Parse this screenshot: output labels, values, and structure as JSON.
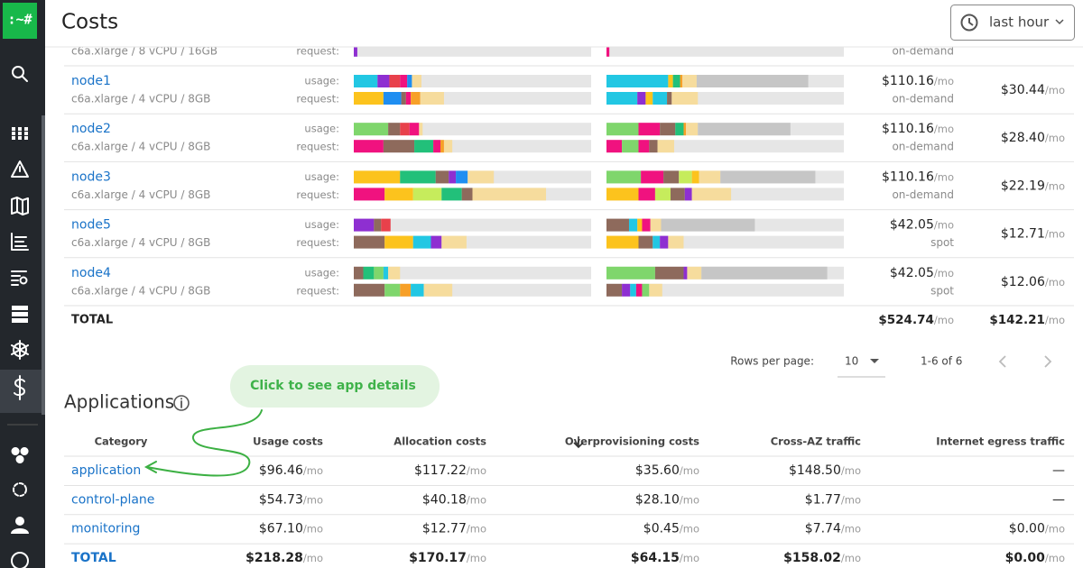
{
  "sidebar": {
    "logo": ":~#"
  },
  "header": {
    "title": "Costs",
    "time_range": "last hour"
  },
  "nodes": {
    "partial_row": {
      "instance": "c6a.xlarge / 8 vCPU / 16GB",
      "request_label": "request:",
      "pricing": "on-demand",
      "cpu_request": [
        [
          "#8e2fd1",
          1.5
        ]
      ],
      "memory_request": [
        [
          "#f0127f",
          1.2
        ]
      ]
    },
    "rows": [
      {
        "name": "node1",
        "instance": "c6a.xlarge / 4 vCPU / 8GB",
        "usage_label": "usage:",
        "request_label": "request:",
        "cpu_usage": [
          [
            "#22c7e3",
            10
          ],
          [
            "#8e2fd1",
            5
          ],
          [
            "#e8414b",
            4.5
          ],
          [
            "#f0127f",
            3
          ],
          [
            "#1f8ef1",
            2
          ],
          [
            "#f6dc9d",
            4
          ]
        ],
        "cpu_request": [
          [
            "#fcc31d",
            12.5
          ],
          [
            "#1f8ef1",
            7.5
          ],
          [
            "#8e6a5c",
            2
          ],
          [
            "#f0127f",
            2
          ],
          [
            "#f7a028",
            4
          ],
          [
            "#f6dc9d",
            10
          ]
        ],
        "memory_usage": [
          [
            "#22c7e3",
            26
          ],
          [
            "#fcc31d",
            2
          ],
          [
            "#22c07a",
            3
          ],
          [
            "#f7a028",
            1
          ],
          [
            "#f6dc9d",
            6
          ],
          [
            "#c6c6c6",
            47
          ]
        ],
        "memory_request": [
          [
            "#22c7e3",
            13
          ],
          [
            "#8e2fd1",
            3.5
          ],
          [
            "#fcc31d",
            3
          ],
          [
            "#22c7e3",
            6
          ],
          [
            "#8e6a5c",
            2
          ],
          [
            "#f6dc9d",
            11
          ]
        ],
        "cost": [
          "$110.16",
          "/mo"
        ],
        "pricing": "on-demand",
        "waste": [
          "$30.44",
          "/mo"
        ]
      },
      {
        "name": "node2",
        "instance": "c6a.xlarge / 4 vCPU / 8GB",
        "usage_label": "usage:",
        "request_label": "request:",
        "cpu_usage": [
          [
            "#7fd66c",
            14.5
          ],
          [
            "#8e6a5c",
            5
          ],
          [
            "#e8414b",
            4
          ],
          [
            "#f0127f",
            4
          ],
          [
            "#f6dc9d",
            1.5
          ]
        ],
        "cpu_request": [
          [
            "#f0127f",
            12.5
          ],
          [
            "#8e6a5c",
            13
          ],
          [
            "#22c07a",
            8
          ],
          [
            "#f0127f",
            3
          ],
          [
            "#f7a028",
            1.5
          ],
          [
            "#f6dc9d",
            3.5
          ]
        ],
        "memory_usage": [
          [
            "#7fd66c",
            13.5
          ],
          [
            "#f0127f",
            9
          ],
          [
            "#8e6a5c",
            6.5
          ],
          [
            "#22c07a",
            3.5
          ],
          [
            "#f7a028",
            1
          ],
          [
            "#f6dc9d",
            5
          ],
          [
            "#c6c6c6",
            39
          ]
        ],
        "memory_request": [
          [
            "#f0127f",
            6.5
          ],
          [
            "#7fd66c",
            7
          ],
          [
            "#f0127f",
            4.5
          ],
          [
            "#8e6a5c",
            3.5
          ],
          [
            "#f6dc9d",
            7
          ]
        ],
        "cost": [
          "$110.16",
          "/mo"
        ],
        "pricing": "on-demand",
        "waste": [
          "$28.40",
          "/mo"
        ]
      },
      {
        "name": "node3",
        "instance": "c6a.xlarge / 4 vCPU / 8GB",
        "usage_label": "usage:",
        "request_label": "request:",
        "cpu_usage": [
          [
            "#fcc31d",
            19.5
          ],
          [
            "#22c07a",
            15
          ],
          [
            "#8e6a5c",
            5.5
          ],
          [
            "#8e2fd1",
            3
          ],
          [
            "#1f8ef1",
            5
          ],
          [
            "#f6dc9d",
            11
          ]
        ],
        "cpu_request": [
          [
            "#f0127f",
            13
          ],
          [
            "#fcc31d",
            12
          ],
          [
            "#c6ec5c",
            12
          ],
          [
            "#22c07a",
            8.5
          ],
          [
            "#8e6a5c",
            4.5
          ],
          [
            "#f6dc9d",
            31
          ]
        ],
        "memory_usage": [
          [
            "#7fd66c",
            14.5
          ],
          [
            "#f0127f",
            9.5
          ],
          [
            "#8e6a5c",
            6.5
          ],
          [
            "#c6ec5c",
            5.5
          ],
          [
            "#fcc31d",
            3
          ],
          [
            "#f6dc9d",
            9
          ],
          [
            "#c6c6c6",
            40
          ]
        ],
        "memory_request": [
          [
            "#fcc31d",
            13.5
          ],
          [
            "#f0127f",
            7
          ],
          [
            "#c6ec5c",
            6.5
          ],
          [
            "#8e6a5c",
            6
          ],
          [
            "#8e2fd1",
            3
          ],
          [
            "#f6dc9d",
            16.5
          ]
        ],
        "cost": [
          "$110.16",
          "/mo"
        ],
        "pricing": "on-demand",
        "waste": [
          "$22.19",
          "/mo"
        ]
      },
      {
        "name": "node5",
        "instance": "c6a.xlarge / 4 vCPU / 8GB",
        "usage_label": "usage:",
        "request_label": "request:",
        "cpu_usage": [
          [
            "#8e2fd1",
            8.5
          ],
          [
            "#8e6a5c",
            3
          ],
          [
            "#e8414b",
            4
          ]
        ],
        "cpu_request": [
          [
            "#8e6a5c",
            13
          ],
          [
            "#fcc31d",
            12
          ],
          [
            "#22c7e3",
            7.5
          ],
          [
            "#8e2fd1",
            4.5
          ],
          [
            "#f6dc9d",
            10.5
          ]
        ],
        "memory_usage": [
          [
            "#8e6a5c",
            9.5
          ],
          [
            "#22c7e3",
            3.5
          ],
          [
            "#fcc31d",
            2
          ],
          [
            "#f0127f",
            3.5
          ],
          [
            "#f6dc9d",
            4.5
          ],
          [
            "#c6c6c6",
            39.5
          ]
        ],
        "memory_request": [
          [
            "#fcc31d",
            13.5
          ],
          [
            "#8e6a5c",
            6
          ],
          [
            "#22c7e3",
            3
          ],
          [
            "#8e2fd1",
            3.5
          ],
          [
            "#f6dc9d",
            6.5
          ]
        ],
        "cost": [
          "$42.05",
          "/mo"
        ],
        "pricing": "spot",
        "waste": [
          "$12.71",
          "/mo"
        ]
      },
      {
        "name": "node4",
        "instance": "c6a.xlarge / 4 vCPU / 8GB",
        "usage_label": "usage:",
        "request_label": "request:",
        "cpu_usage": [
          [
            "#8e6a5c",
            4
          ],
          [
            "#22c07a",
            4.5
          ],
          [
            "#7fd66c",
            4
          ],
          [
            "#22c7e3",
            2
          ],
          [
            "#f6dc9d",
            5
          ]
        ],
        "cpu_request": [
          [
            "#8e6a5c",
            13
          ],
          [
            "#7fd66c",
            6.5
          ],
          [
            "#f7a028",
            4.5
          ],
          [
            "#22c7e3",
            5.5
          ],
          [
            "#f6dc9d",
            12
          ]
        ],
        "memory_usage": [
          [
            "#7fd66c",
            20.5
          ],
          [
            "#8e6a5c",
            12
          ],
          [
            "#8e2fd1",
            1.5
          ],
          [
            "#f6dc9d",
            6
          ],
          [
            "#c6c6c6",
            53
          ]
        ],
        "memory_request": [
          [
            "#8e6a5c",
            6.5
          ],
          [
            "#8e2fd1",
            3.5
          ],
          [
            "#22c7e3",
            2.5
          ],
          [
            "#f0127f",
            2.5
          ],
          [
            "#7fd66c",
            3
          ],
          [
            "#f6dc9d",
            5.5
          ]
        ],
        "cost": [
          "$42.05",
          "/mo"
        ],
        "pricing": "spot",
        "waste": [
          "$12.06",
          "/mo"
        ]
      }
    ],
    "total": {
      "label": "TOTAL",
      "cost": [
        "$524.74",
        "/mo"
      ],
      "waste": [
        "$142.21",
        "/mo"
      ]
    },
    "pagination": {
      "rows_per_page_label": "Rows per page:",
      "rows_per_page": "10",
      "range": "1-6 of 6"
    }
  },
  "callout": "Click to see app details",
  "applications": {
    "title": "Applications",
    "columns": [
      "Category",
      "Usage costs",
      "Allocation costs",
      "Overprovisioning costs",
      "Cross-AZ traffic",
      "Internet egress traffic"
    ],
    "rows": [
      {
        "category": "application",
        "cells": [
          [
            "$96.46",
            "/mo"
          ],
          [
            "$117.22",
            "/mo"
          ],
          [
            "$35.60",
            "/mo"
          ],
          [
            "$148.50",
            "/mo"
          ],
          [
            "—"
          ]
        ]
      },
      {
        "category": "control-plane",
        "cells": [
          [
            "$54.73",
            "/mo"
          ],
          [
            "$40.18",
            "/mo"
          ],
          [
            "$28.10",
            "/mo"
          ],
          [
            "$1.77",
            "/mo"
          ],
          [
            "—"
          ]
        ]
      },
      {
        "category": "monitoring",
        "cells": [
          [
            "$67.10",
            "/mo"
          ],
          [
            "$12.77",
            "/mo"
          ],
          [
            "$0.45",
            "/mo"
          ],
          [
            "$7.74",
            "/mo"
          ],
          [
            "$0.00",
            "/mo"
          ]
        ]
      }
    ],
    "total": {
      "category": "TOTAL",
      "cells": [
        [
          "$218.28",
          "/mo"
        ],
        [
          "$170.17",
          "/mo"
        ],
        [
          "$64.15",
          "/mo"
        ],
        [
          "$158.02",
          "/mo"
        ],
        [
          "$0.00",
          "/mo"
        ]
      ]
    }
  }
}
